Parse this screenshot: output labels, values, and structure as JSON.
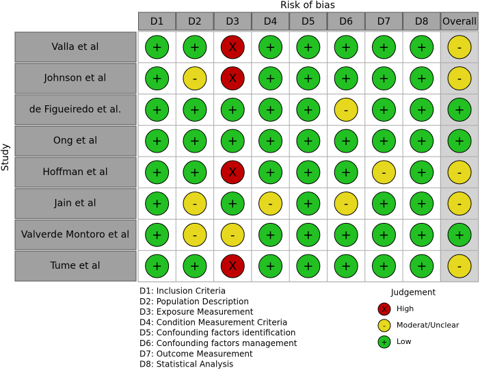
{
  "title": "Risk of bias",
  "y_label": "Study",
  "domains": [
    "D1",
    "D2",
    "D3",
    "D4",
    "D5",
    "D6",
    "D7",
    "D8",
    "Overall"
  ],
  "studies": [
    "Valla et al",
    "Johnson et al",
    "de Figueiredo et al.",
    "Ong et al",
    "Hoffman et al",
    "Jain et al",
    "Valverde Montoro et al",
    "Tume et al"
  ],
  "judgements": [
    [
      "+",
      "+",
      "X",
      "+",
      "+",
      "+",
      "+",
      "+",
      "-"
    ],
    [
      "+",
      "-",
      "X",
      "+",
      "+",
      "+",
      "+",
      "+",
      "-"
    ],
    [
      "+",
      "+",
      "+",
      "+",
      "+",
      "-",
      "+",
      "+",
      "+"
    ],
    [
      "+",
      "+",
      "+",
      "+",
      "+",
      "+",
      "+",
      "+",
      "+"
    ],
    [
      "+",
      "+",
      "X",
      "+",
      "+",
      "+",
      "-",
      "+",
      "-"
    ],
    [
      "+",
      "-",
      "+",
      "-",
      "+",
      "-",
      "+",
      "+",
      "-"
    ],
    [
      "+",
      "-",
      "-",
      "+",
      "+",
      "+",
      "+",
      "+",
      "+"
    ],
    [
      "+",
      "+",
      "X",
      "+",
      "+",
      "+",
      "+",
      "+",
      "-"
    ]
  ],
  "domain_definitions": [
    "D1: Inclusion Criteria",
    "D2: Population Description",
    "D3: Exposure Measurement",
    "D4: Condition Measurement Criteria",
    "D5: Confounding factors identification",
    "D6: Confounding factors management",
    "D7: Outcome Measurement",
    "D8: Statistical Analysis"
  ],
  "legend": {
    "title": "Judgement",
    "entries": [
      {
        "symbol": "X",
        "label": "High",
        "color": "#c00000"
      },
      {
        "symbol": "-",
        "label": "Moderat/Unclear",
        "color": "#e6d81e"
      },
      {
        "symbol": "+",
        "label": "Low",
        "color": "#22c022"
      }
    ]
  }
}
